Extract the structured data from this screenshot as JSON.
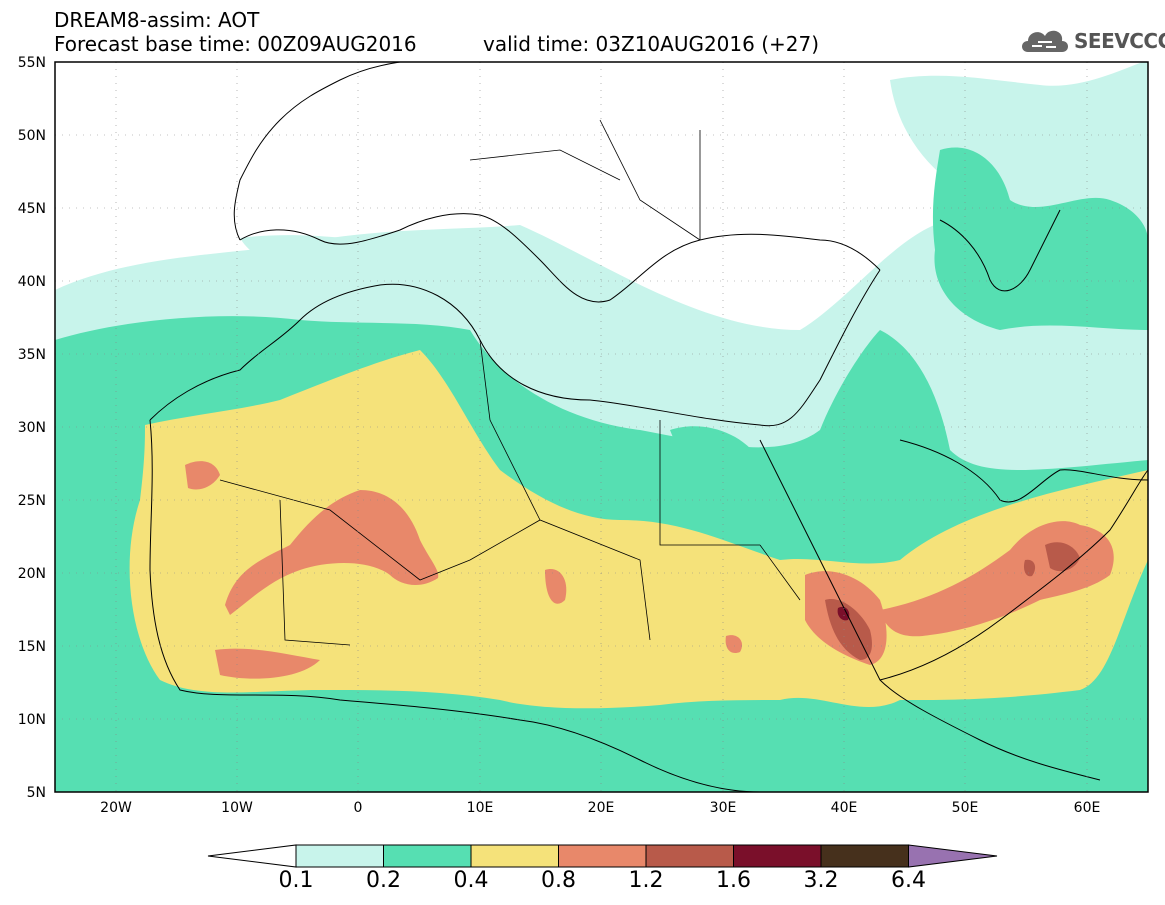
{
  "header": {
    "line1": "DREAM8-assim: AOT",
    "line2": "Forecast base time: 00Z09AUG2016",
    "valid": "valid time: 03Z10AUG2016 (+27)",
    "logo": "SEEVCCC"
  },
  "axes": {
    "lat_labels": [
      "55N",
      "50N",
      "45N",
      "40N",
      "35N",
      "30N",
      "25N",
      "20N",
      "15N",
      "10N",
      "5N"
    ],
    "lon_labels": [
      "20W",
      "10W",
      "0",
      "10E",
      "20E",
      "30E",
      "40E",
      "50E",
      "60E"
    ],
    "lon_range": [
      -25,
      65
    ],
    "lat_range": [
      5,
      55
    ]
  },
  "legend": {
    "labels": [
      "0.1",
      "0.2",
      "0.4",
      "0.8",
      "1.2",
      "1.6",
      "3.2",
      "6.4"
    ],
    "colors": [
      "#ffffff",
      "#c8f4eb",
      "#56dfb2",
      "#f5e27a",
      "#e8886a",
      "#b85a4a",
      "#7a0f2a",
      "#46301c",
      "#9872b0"
    ]
  }
}
